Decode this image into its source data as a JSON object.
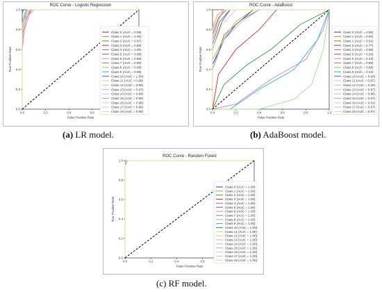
{
  "captions": [
    {
      "tag": "(a)",
      "text": " LR model."
    },
    {
      "tag": "(b)",
      "text": " AdaBoost model."
    },
    {
      "tag": "",
      "text": "(c) RF model."
    }
  ],
  "chart_data": [
    {
      "type": "line",
      "title": "ROC Curve - Logistic Regression",
      "xlabel": "False Positive Rate",
      "ylabel": "True Positive Rate",
      "xlim": [
        0,
        1
      ],
      "ylim": [
        0,
        1
      ],
      "xticks": [
        "0.0",
        "0.2",
        "0.4",
        "0.6",
        "0.8",
        "1.0"
      ],
      "yticks": [
        "0.0",
        "0.2",
        "0.4",
        "0.6",
        "0.8",
        "1.0"
      ],
      "legend_position": "center-right",
      "diagonal": true,
      "series": [
        {
          "name": "Class 0 (AUC = 0.99)",
          "x": [
            0,
            0.0,
            0.02,
            0.05,
            1
          ],
          "y": [
            0,
            0.85,
            0.95,
            1,
            1
          ]
        },
        {
          "name": "Class 1 (AUC = 1.00)",
          "x": [
            0,
            0.0,
            0.01,
            1
          ],
          "y": [
            0,
            0.97,
            1,
            1
          ]
        },
        {
          "name": "Class 2 (AUC = 0.97)",
          "x": [
            0,
            0.0,
            0.03,
            0.08,
            1
          ],
          "y": [
            0,
            0.75,
            0.9,
            1,
            1
          ]
        },
        {
          "name": "Class 3 (AUC = 0.99)",
          "x": [
            0,
            0.0,
            0.02,
            0.04,
            1
          ],
          "y": [
            0,
            0.82,
            0.96,
            1,
            1
          ]
        },
        {
          "name": "Class 4 (AUC = 1.00)",
          "x": [
            0,
            0.0,
            0.01,
            1
          ],
          "y": [
            0,
            0.98,
            1,
            1
          ]
        },
        {
          "name": "Class 5 (AUC = 0.99)",
          "x": [
            0,
            0.0,
            0.02,
            0.05,
            1
          ],
          "y": [
            0,
            0.8,
            0.93,
            1,
            1
          ]
        },
        {
          "name": "Class 6 (AUC = 0.96)",
          "x": [
            0,
            0.0,
            0.02,
            0.06,
            0.1,
            1
          ],
          "y": [
            0,
            0.6,
            0.8,
            0.95,
            1,
            1
          ]
        },
        {
          "name": "Class 7 (AUC = 0.99)",
          "x": [
            0,
            0.0,
            0.03,
            0.05,
            1
          ],
          "y": [
            0,
            0.85,
            0.95,
            1,
            1
          ]
        },
        {
          "name": "Class 8 (AUC = 0.99)",
          "x": [
            0,
            0.0,
            0.02,
            0.04,
            1
          ],
          "y": [
            0,
            0.88,
            0.97,
            1,
            1
          ]
        },
        {
          "name": "Class 9 (AUC = 0.98)",
          "x": [
            0,
            0.0,
            0.03,
            0.07,
            1
          ],
          "y": [
            0,
            0.7,
            0.92,
            1,
            1
          ]
        },
        {
          "name": "Class 10 (AUC = 1.00)",
          "x": [
            0,
            0.0,
            0.01,
            1
          ],
          "y": [
            0,
            0.96,
            1,
            1
          ]
        },
        {
          "name": "Class 11 (AUC = 0.99)",
          "x": [
            0,
            0.0,
            0.02,
            0.05,
            1
          ],
          "y": [
            0,
            0.84,
            0.95,
            1,
            1
          ]
        },
        {
          "name": "Class 12 (AUC = 0.99)",
          "x": [
            0,
            0.0,
            0.02,
            0.04,
            1
          ],
          "y": [
            0,
            0.86,
            0.96,
            1,
            1
          ]
        },
        {
          "name": "Class 13 (AUC = 0.97)",
          "x": [
            0,
            0.0,
            0.03,
            0.07,
            1
          ],
          "y": [
            0,
            0.65,
            0.88,
            1,
            1
          ]
        },
        {
          "name": "Class 14 (AUC = 0.99)",
          "x": [
            0,
            0.0,
            0.02,
            0.05,
            1
          ],
          "y": [
            0,
            0.83,
            0.95,
            1,
            1
          ]
        },
        {
          "name": "Class 15 (AUC = 0.99)",
          "x": [
            0,
            0.0,
            0.02,
            0.04,
            1
          ],
          "y": [
            0,
            0.87,
            0.96,
            1,
            1
          ]
        },
        {
          "name": "Class 16 (AUC = 0.98)",
          "x": [
            0,
            0.0,
            0.03,
            0.06,
            1
          ],
          "y": [
            0,
            0.72,
            0.9,
            1,
            1
          ]
        },
        {
          "name": "Class 17 (AUC = 0.99)",
          "x": [
            0,
            0.0,
            0.02,
            0.04,
            1
          ],
          "y": [
            0,
            0.85,
            0.97,
            1,
            1
          ]
        },
        {
          "name": "Class 18 (AUC = 0.99)",
          "x": [
            0,
            0.0,
            0.02,
            0.05,
            1
          ],
          "y": [
            0,
            0.82,
            0.94,
            1,
            1
          ]
        }
      ]
    },
    {
      "type": "line",
      "title": "ROC Curve - AdaBoost",
      "xlabel": "False Positive Rate",
      "ylabel": "True Positive Rate",
      "xlim": [
        0,
        1
      ],
      "ylim": [
        0,
        1
      ],
      "xticks": [
        "0.0",
        "0.2",
        "0.4",
        "0.6",
        "0.8",
        "1.0"
      ],
      "yticks": [
        "0.0",
        "0.2",
        "0.4",
        "0.6",
        "0.8",
        "1.0"
      ],
      "legend_position": "center-right",
      "diagonal": true,
      "series": [
        {
          "name": "Class 0 (AUC = 0.88)",
          "x": [
            0,
            0.0,
            0.1,
            0.2,
            0.35,
            1
          ],
          "y": [
            0,
            0.45,
            0.7,
            0.85,
            1,
            1
          ]
        },
        {
          "name": "Class 1 (AUC = 0.95)",
          "x": [
            0,
            0.0,
            0.05,
            0.1,
            1
          ],
          "y": [
            0,
            0.7,
            0.9,
            1,
            1
          ]
        },
        {
          "name": "Class 2 (AUC = 0.61)",
          "x": [
            0,
            0.1,
            0.3,
            0.5,
            0.75,
            1
          ],
          "y": [
            0,
            0.25,
            0.45,
            0.6,
            0.85,
            1
          ]
        },
        {
          "name": "Class 3 (AUC = 0.77)",
          "x": [
            0,
            0.05,
            0.2,
            0.4,
            0.55,
            1
          ],
          "y": [
            0,
            0.35,
            0.6,
            0.8,
            1,
            1
          ]
        },
        {
          "name": "Class 4 (AUC = 0.96)",
          "x": [
            0,
            0.0,
            0.05,
            0.12,
            1
          ],
          "y": [
            0,
            0.75,
            0.92,
            1,
            1
          ]
        },
        {
          "name": "Class 5 (AUC = 0.93)",
          "x": [
            0,
            0.0,
            0.08,
            0.15,
            1
          ],
          "y": [
            0,
            0.6,
            0.88,
            1,
            1
          ]
        },
        {
          "name": "Class 6 (AUC = 0.42)",
          "x": [
            0,
            0.2,
            0.5,
            0.8,
            0.95,
            1
          ],
          "y": [
            0,
            0.05,
            0.3,
            0.5,
            0.8,
            1
          ]
        },
        {
          "name": "Class 7 (AUC = 0.88)",
          "x": [
            0,
            0.0,
            0.1,
            0.25,
            0.4,
            1
          ],
          "y": [
            0,
            0.4,
            0.75,
            0.9,
            1,
            1
          ]
        },
        {
          "name": "Class 8 (AUC = 0.89)",
          "x": [
            0,
            0.0,
            0.1,
            0.2,
            0.35,
            1
          ],
          "y": [
            0,
            0.5,
            0.72,
            0.88,
            1,
            1
          ]
        },
        {
          "name": "Class 9 (AUC = 0.42)",
          "x": [
            0,
            0.15,
            0.4,
            0.7,
            0.9,
            1
          ],
          "y": [
            0,
            0.0,
            0.2,
            0.4,
            0.7,
            1
          ]
        },
        {
          "name": "Class 10 (AUC = 0.93)",
          "x": [
            0,
            0.0,
            0.06,
            0.15,
            1
          ],
          "y": [
            0,
            0.65,
            0.88,
            1,
            1
          ]
        },
        {
          "name": "Class 11 (AUC = 0.97)",
          "x": [
            0,
            0.0,
            0.04,
            0.1,
            1
          ],
          "y": [
            0,
            0.8,
            0.94,
            1,
            1
          ]
        },
        {
          "name": "Class 12 (AUC = 0.28)",
          "x": [
            0,
            0.4,
            0.7,
            0.85,
            0.95,
            1
          ],
          "y": [
            0,
            0.0,
            0.1,
            0.25,
            0.6,
            1
          ]
        },
        {
          "name": "Class 13 (AUC = 0.97)",
          "x": [
            0,
            0.0,
            0.04,
            0.1,
            1
          ],
          "y": [
            0,
            0.78,
            0.94,
            1,
            1
          ]
        },
        {
          "name": "Class 14 (AUC = 0.86)",
          "x": [
            0,
            0.0,
            0.1,
            0.25,
            0.4,
            1
          ],
          "y": [
            0,
            0.4,
            0.7,
            0.88,
            1,
            1
          ]
        },
        {
          "name": "Class 15 (AUC = 0.97)",
          "x": [
            0,
            0.0,
            0.04,
            0.1,
            1
          ],
          "y": [
            0,
            0.8,
            0.95,
            1,
            1
          ]
        },
        {
          "name": "Class 16 (AUC = 0.91)",
          "x": [
            0,
            0.0,
            0.08,
            0.2,
            1
          ],
          "y": [
            0,
            0.6,
            0.85,
            1,
            1
          ]
        },
        {
          "name": "Class 17 (AUC = 0.97)",
          "x": [
            0,
            0.0,
            0.04,
            0.1,
            1
          ],
          "y": [
            0,
            0.82,
            0.95,
            1,
            1
          ]
        },
        {
          "name": "Class 18 (AUC = 0.97)",
          "x": [
            0,
            0.0,
            0.04,
            0.1,
            1
          ],
          "y": [
            0,
            0.79,
            0.94,
            1,
            1
          ]
        }
      ]
    },
    {
      "type": "line",
      "title": "ROC Curve - Random Forest",
      "xlabel": "False Positive Rate",
      "ylabel": "True Positive Rate",
      "xlim": [
        0,
        1
      ],
      "ylim": [
        0,
        1
      ],
      "xticks": [
        "0.0",
        "0.2",
        "0.4",
        "0.6",
        "0.8",
        "1.0"
      ],
      "yticks": [
        "0.0",
        "0.2",
        "0.4",
        "0.6",
        "0.8",
        "1.0"
      ],
      "legend_position": "center-right",
      "diagonal": true,
      "series": [
        {
          "name": "Class 0 (AUC = 1.00)",
          "x": [
            0,
            0.0,
            0.01,
            1
          ],
          "y": [
            0,
            0.97,
            1,
            1
          ]
        },
        {
          "name": "Class 1 (AUC = 1.00)",
          "x": [
            0,
            0.0,
            0.01,
            1
          ],
          "y": [
            0,
            0.98,
            1,
            1
          ]
        },
        {
          "name": "Class 2 (AUC = 1.00)",
          "x": [
            0,
            0.0,
            0.01,
            1
          ],
          "y": [
            0,
            0.96,
            1,
            1
          ]
        },
        {
          "name": "Class 3 (AUC = 1.00)",
          "x": [
            0,
            0.0,
            0.01,
            1
          ],
          "y": [
            0,
            0.99,
            1,
            1
          ]
        },
        {
          "name": "Class 4 (AUC = 1.00)",
          "x": [
            0,
            0.0,
            0.01,
            1
          ],
          "y": [
            0,
            0.97,
            1,
            1
          ]
        },
        {
          "name": "Class 5 (AUC = 1.00)",
          "x": [
            0,
            0.0,
            0.01,
            1
          ],
          "y": [
            0,
            0.98,
            1,
            1
          ]
        },
        {
          "name": "Class 6 (AUC = 1.00)",
          "x": [
            0,
            0.0,
            0.02,
            1
          ],
          "y": [
            0,
            0.95,
            1,
            1
          ]
        },
        {
          "name": "Class 7 (AUC = 1.00)",
          "x": [
            0,
            0.0,
            0.01,
            1
          ],
          "y": [
            0,
            0.99,
            1,
            1
          ]
        },
        {
          "name": "Class 8 (AUC = 1.00)",
          "x": [
            0,
            0.0,
            0.01,
            1
          ],
          "y": [
            0,
            0.97,
            1,
            1
          ]
        },
        {
          "name": "Class 9 (AUC = 1.00)",
          "x": [
            0,
            0.0,
            0.02,
            1
          ],
          "y": [
            0,
            0.96,
            1,
            1
          ]
        },
        {
          "name": "Class 10 (AUC = 1.00)",
          "x": [
            0,
            0.0,
            0.01,
            1
          ],
          "y": [
            0,
            0.98,
            1,
            1
          ]
        },
        {
          "name": "Class 11 (AUC = 1.00)",
          "x": [
            0,
            0.0,
            0.01,
            1
          ],
          "y": [
            0,
            0.99,
            1,
            1
          ]
        },
        {
          "name": "Class 12 (AUC = 1.00)",
          "x": [
            0,
            0.0,
            0.01,
            1
          ],
          "y": [
            0,
            0.97,
            1,
            1
          ]
        },
        {
          "name": "Class 13 (AUC = 1.00)",
          "x": [
            0,
            0.0,
            0.02,
            1
          ],
          "y": [
            0,
            0.96,
            1,
            1
          ]
        },
        {
          "name": "Class 14 (AUC = 1.00)",
          "x": [
            0,
            0.0,
            0.01,
            1
          ],
          "y": [
            0,
            0.98,
            1,
            1
          ]
        },
        {
          "name": "Class 15 (AUC = 1.00)",
          "x": [
            0,
            0.0,
            0.01,
            1
          ],
          "y": [
            0,
            0.97,
            1,
            1
          ]
        },
        {
          "name": "Class 16 (AUC = 1.00)",
          "x": [
            0,
            0.0,
            0.01,
            1
          ],
          "y": [
            0,
            0.99,
            1,
            1
          ]
        },
        {
          "name": "Class 17 (AUC = 1.00)",
          "x": [
            0,
            0.0,
            0.01,
            1
          ],
          "y": [
            0,
            0.98,
            1,
            1
          ]
        },
        {
          "name": "Class 18 (AUC = 1.00)",
          "x": [
            0,
            0.0,
            0.01,
            1
          ],
          "y": [
            0,
            0.97,
            1,
            1
          ]
        }
      ]
    }
  ],
  "colors": [
    "#1f3fb4",
    "#ff7f0e",
    "#2ca02c",
    "#d62728",
    "#9467bd",
    "#8c564b",
    "#e377c2",
    "#7f7f7f",
    "#bcbd22",
    "#17becf",
    "#1f77b4",
    "#ffbb78",
    "#98df8a",
    "#ff9896",
    "#c5b0d5",
    "#c49c94",
    "#f7b6d2",
    "#c7c7c7",
    "#dbdb8d"
  ]
}
